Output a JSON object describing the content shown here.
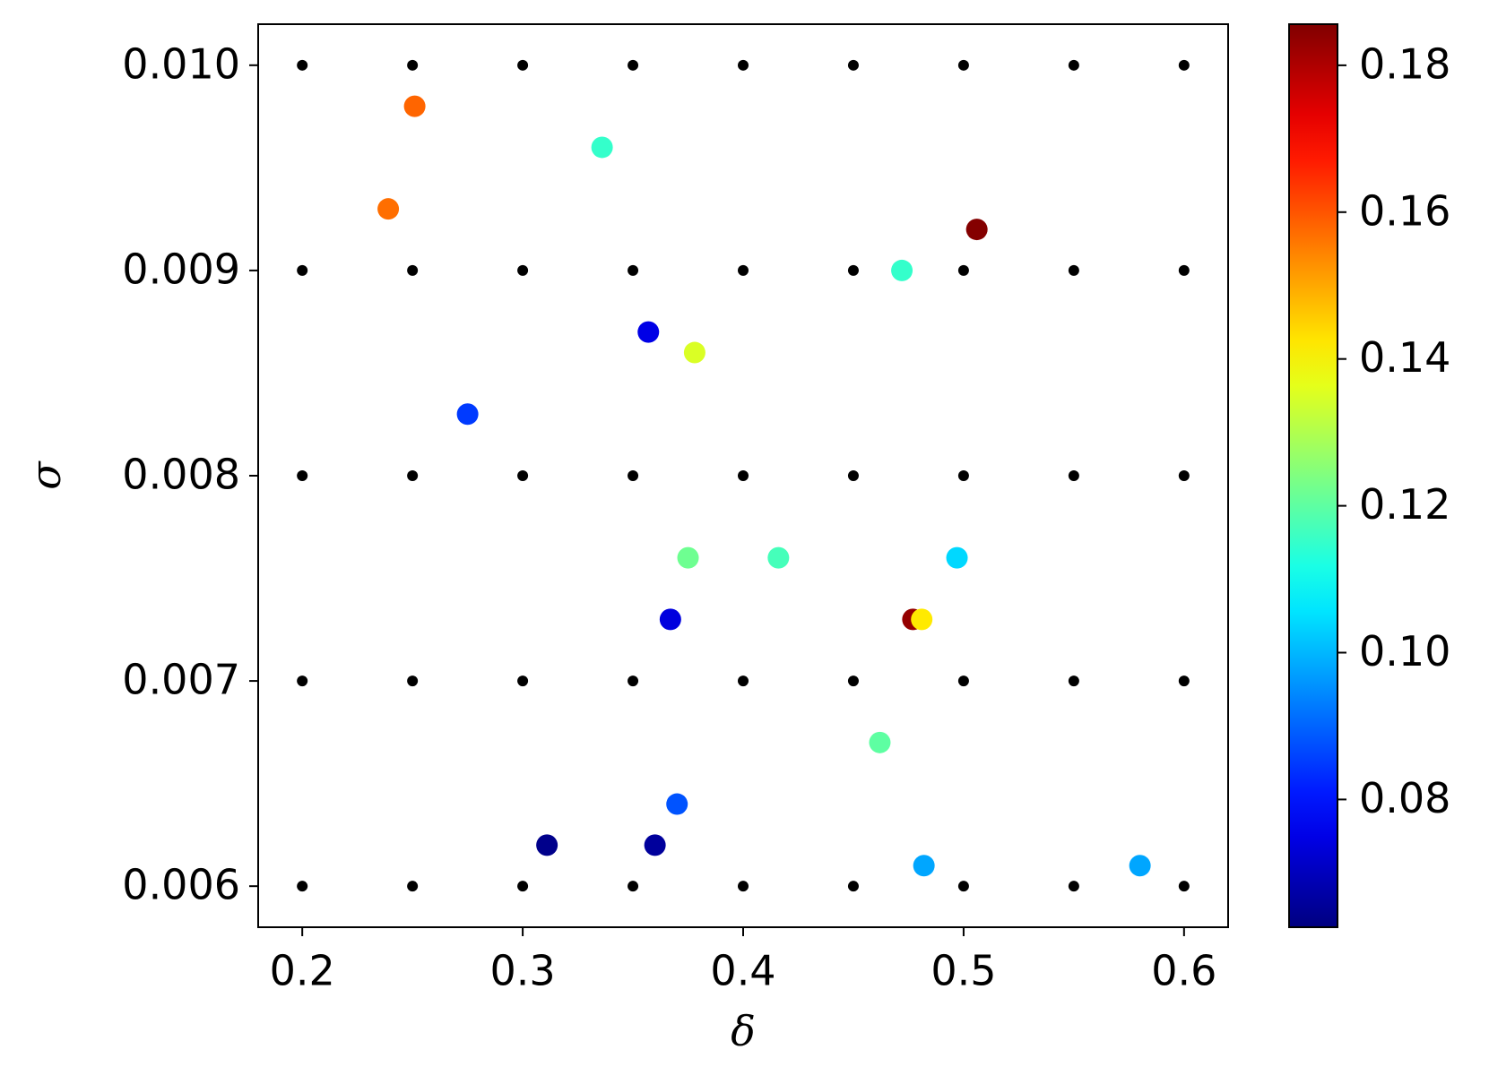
{
  "chart_data": {
    "type": "scatter",
    "x_label": "δ",
    "y_label": "σ",
    "xlim": [
      0.18,
      0.62
    ],
    "xticks": [
      0.2,
      0.3,
      0.4,
      0.5,
      0.6
    ],
    "ylim": [
      0.0058,
      0.0102
    ],
    "yticks": [
      0.006,
      0.007,
      0.008,
      0.009,
      {
        "value": 0.01,
        "label": "0.010"
      }
    ],
    "colormap": "jet",
    "clim": [
      0.0626,
      0.1856
    ],
    "cticks": [
      0.08,
      {
        "value": 0.1,
        "label": "0.10"
      },
      0.12,
      0.14,
      0.16,
      0.18
    ],
    "series": [
      {
        "color": "#000000",
        "x": [
          0.2,
          0.25,
          0.3,
          0.35,
          0.4,
          0.45,
          0.5,
          0.55,
          0.6,
          0.2,
          0.25,
          0.3,
          0.35,
          0.4,
          0.45,
          0.5,
          0.55,
          0.6,
          0.2,
          0.25,
          0.3,
          0.35,
          0.4,
          0.45,
          0.5,
          0.55,
          0.6,
          0.2,
          0.25,
          0.3,
          0.35,
          0.4,
          0.45,
          0.5,
          0.55,
          0.6,
          0.2,
          0.25,
          0.3,
          0.35,
          0.4,
          0.45,
          0.5,
          0.55,
          0.6
        ],
        "values": [
          0.006,
          0.006,
          0.006,
          0.006,
          0.006,
          0.006,
          0.006,
          0.006,
          0.006,
          0.007,
          0.007,
          0.007,
          0.007,
          0.007,
          0.007,
          0.007,
          0.007,
          0.007,
          0.008,
          0.008,
          0.008,
          0.008,
          0.008,
          0.008,
          0.008,
          0.008,
          0.008,
          0.009,
          0.009,
          0.009,
          0.009,
          0.009,
          0.009,
          0.009,
          0.009,
          0.009,
          0.01,
          0.01,
          0.01,
          0.01,
          0.01,
          0.01,
          0.01,
          0.01,
          0.01
        ]
      },
      {
        "x": [
          0.251,
          0.336,
          0.239,
          0.506,
          0.472,
          0.357,
          0.378,
          0.275,
          0.375,
          0.416,
          0.497,
          0.367,
          0.477,
          0.481,
          0.462,
          0.37,
          0.311,
          0.36,
          0.482,
          0.58
        ],
        "values": [
          0.0098,
          0.0096,
          0.0093,
          0.0092,
          0.009,
          0.0087,
          0.0086,
          0.0083,
          0.0076,
          0.0076,
          0.0076,
          0.0073,
          0.0073,
          0.0073,
          0.0067,
          0.0064,
          0.0062,
          0.0062,
          0.0061,
          0.0061
        ],
        "color_values": [
          0.158,
          0.115,
          0.157,
          0.185,
          0.115,
          0.075,
          0.135,
          0.085,
          0.122,
          0.117,
          0.104,
          0.074,
          0.183,
          0.142,
          0.12,
          0.088,
          0.064,
          0.066,
          0.098,
          0.098
        ]
      }
    ]
  }
}
